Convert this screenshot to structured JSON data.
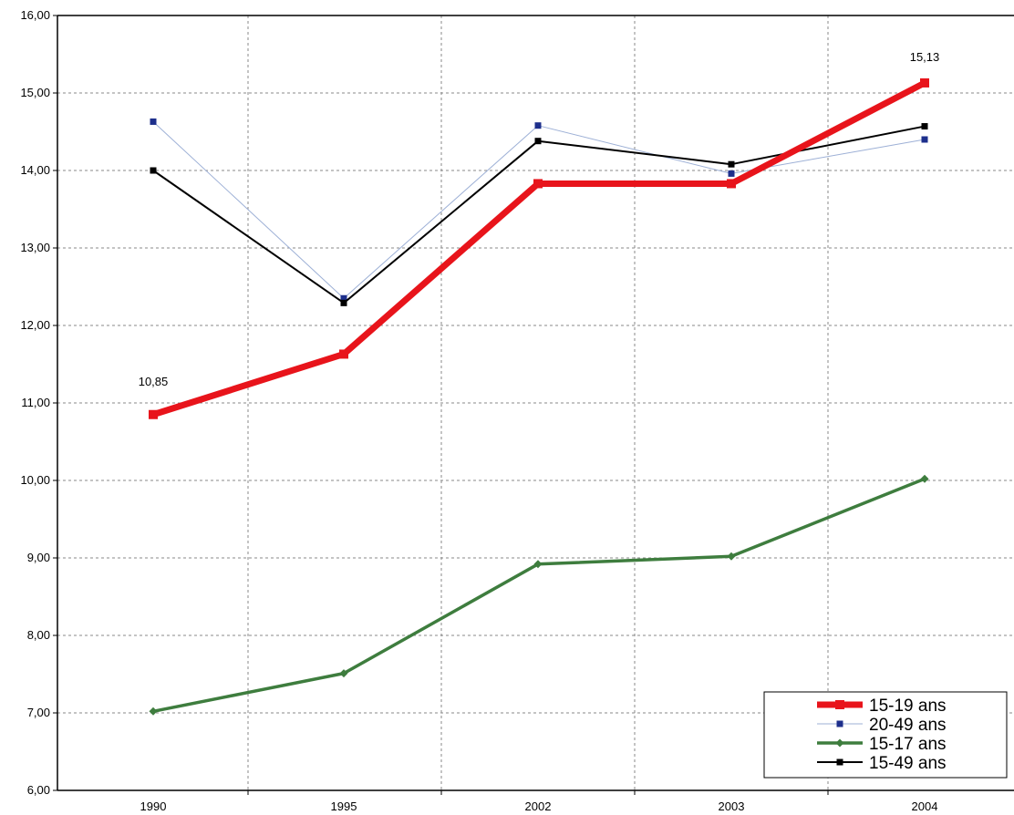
{
  "chart_data": {
    "type": "line",
    "title": "",
    "xlabel": "",
    "ylabel": "",
    "categories": [
      "1990",
      "1995",
      "2002",
      "2003",
      "2004"
    ],
    "ylim": [
      6,
      16
    ],
    "y_ticks": [
      "6,00",
      "7,00",
      "8,00",
      "9,00",
      "10,00",
      "11,00",
      "12,00",
      "13,00",
      "14,00",
      "15,00",
      "16,00"
    ],
    "grid": true,
    "legend_position": "bottom-right",
    "series": [
      {
        "name": "15-19 ans",
        "values": [
          10.85,
          11.63,
          13.83,
          13.83,
          15.13
        ],
        "color": "#e8141b",
        "marker": "square"
      },
      {
        "name": "20-49 ans",
        "values": [
          14.63,
          12.35,
          14.58,
          13.96,
          14.4
        ],
        "color": "#9db0d6",
        "marker_color": "#1d2f8c",
        "marker": "square"
      },
      {
        "name": "15-17 ans",
        "values": [
          7.02,
          7.51,
          8.92,
          9.02,
          10.02
        ],
        "color": "#3e7d3e",
        "marker": "diamond"
      },
      {
        "name": "15-49 ans",
        "values": [
          14.0,
          12.29,
          14.38,
          14.08,
          14.57
        ],
        "color": "#000000",
        "marker": "square"
      }
    ],
    "annotations": [
      {
        "text": "10,85",
        "series": "15-19 ans",
        "category": "1990"
      },
      {
        "text": "15,13",
        "series": "15-19 ans",
        "category": "2004"
      }
    ]
  }
}
